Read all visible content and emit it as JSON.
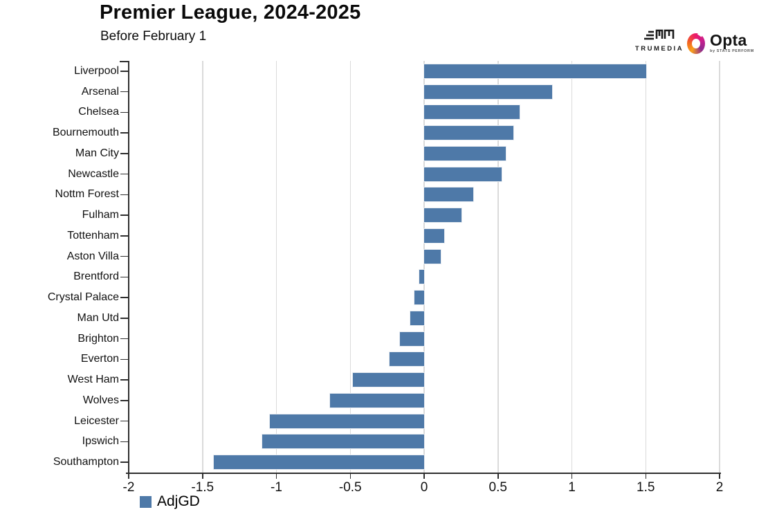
{
  "header": {
    "title": "Premier League, 2024-2025",
    "subtitle": "Before February 1"
  },
  "branding": {
    "trumedia_label": "TRUMEDIA",
    "opta_label": "Opta",
    "opta_sub_label": "by STATS PERFORM"
  },
  "legend": {
    "label": "AdjGD",
    "color": "#4e79a8"
  },
  "chart_data": {
    "type": "bar",
    "orientation": "horizontal",
    "title": "Premier League, 2024-2025",
    "subtitle": "Before February 1",
    "series_name": "AdjGD",
    "categories": [
      "Liverpool",
      "Arsenal",
      "Chelsea",
      "Bournemouth",
      "Man City",
      "Newcastle",
      "Nottm Forest",
      "Fulham",
      "Tottenham",
      "Aston Villa",
      "Brentford",
      "Crystal Palace",
      "Man Utd",
      "Brighton",
      "Everton",
      "West Ham",
      "Wolves",
      "Leicester",
      "Ipswich",
      "Southampton"
    ],
    "values": [
      1.5,
      0.86,
      0.64,
      0.6,
      0.55,
      0.52,
      0.33,
      0.25,
      0.13,
      0.11,
      -0.03,
      -0.06,
      -0.09,
      -0.16,
      -0.23,
      -0.48,
      -0.63,
      -1.04,
      -1.09,
      -1.42
    ],
    "xlim": [
      -2,
      2
    ],
    "x_ticks": [
      -2,
      -1.5,
      -1,
      -0.5,
      0,
      0.5,
      1,
      1.5,
      2
    ],
    "x_tick_labels": [
      "-2",
      "-1.5",
      "-1",
      "-0.5",
      "0",
      "0.5",
      "1",
      "1.5",
      "2"
    ],
    "bar_color": "#4e79a8",
    "grid": true,
    "legend_position": "bottom-left"
  }
}
